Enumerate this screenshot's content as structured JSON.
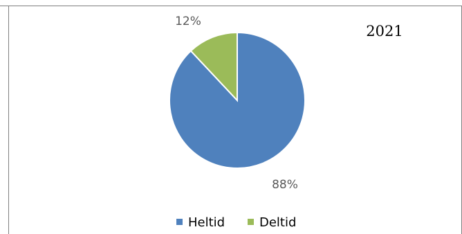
{
  "chart_data": {
    "type": "pie",
    "annotation": "2021",
    "categories": [
      "Heltid",
      "Deltid"
    ],
    "values": [
      88,
      12
    ],
    "labels": [
      "88%",
      "12%"
    ],
    "colors": [
      "#4f81bd",
      "#9bbb59"
    ],
    "start_angle_deg": 0,
    "direction": "clockwise",
    "legend": "bottom"
  }
}
